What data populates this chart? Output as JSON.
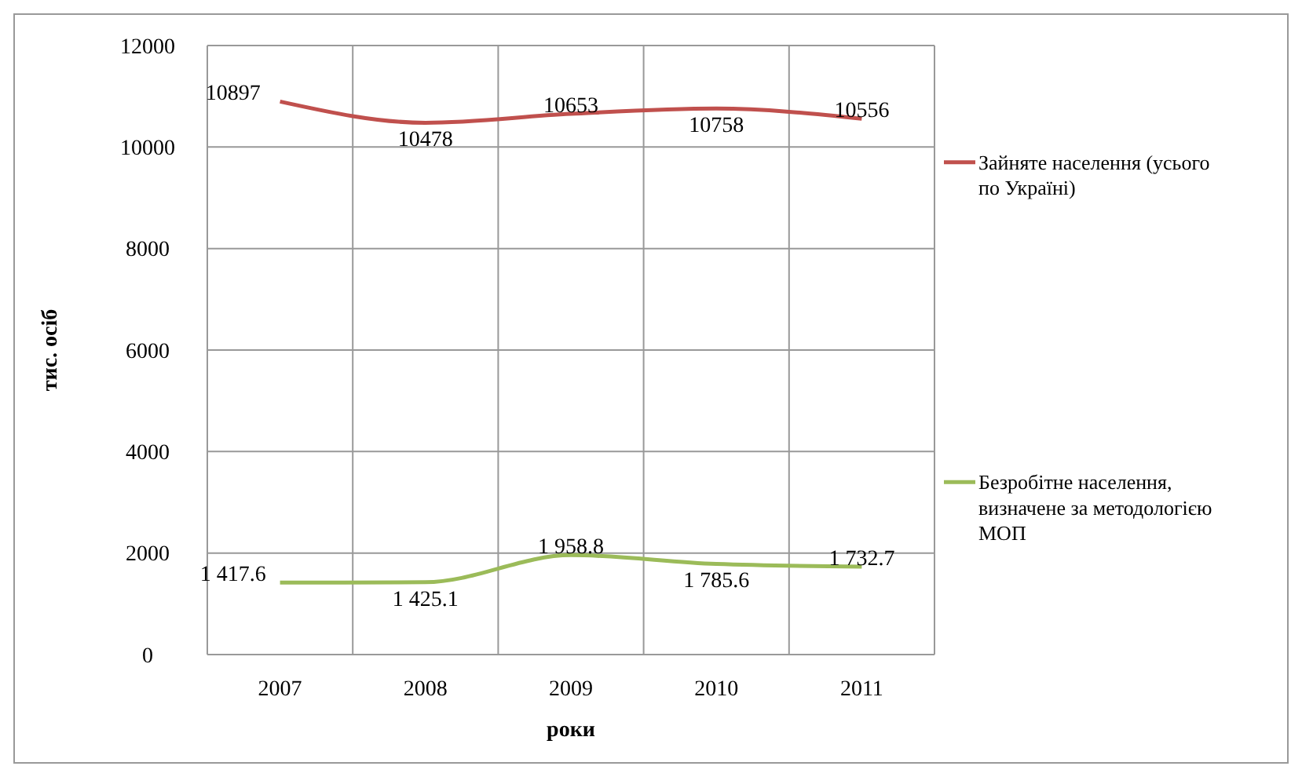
{
  "chart_data": {
    "type": "line",
    "xlabel": "роки",
    "ylabel": "тис. осіб",
    "categories": [
      "2007",
      "2008",
      "2009",
      "2010",
      "2011"
    ],
    "series": [
      {
        "name": "Зайняте населення (усього по Україні)",
        "color": "#c0504d",
        "values": [
          10897,
          10478,
          10653,
          10758,
          10556
        ],
        "value_labels": [
          "10897",
          "10478",
          "10653",
          "10758",
          "10556"
        ]
      },
      {
        "name": "Безробітне населення, визначене за методологією МОП",
        "color": "#9bbb59",
        "values": [
          1417.6,
          1425.1,
          1958.8,
          1785.6,
          1732.7
        ],
        "value_labels": [
          "1 417.6",
          "1 425.1",
          "1 958.8",
          "1 785.6",
          "1 732.7"
        ]
      }
    ],
    "ylim": [
      0,
      12000
    ],
    "yticks": [
      0,
      2000,
      4000,
      6000,
      8000,
      10000,
      12000
    ],
    "grid": true,
    "legend": "right"
  }
}
